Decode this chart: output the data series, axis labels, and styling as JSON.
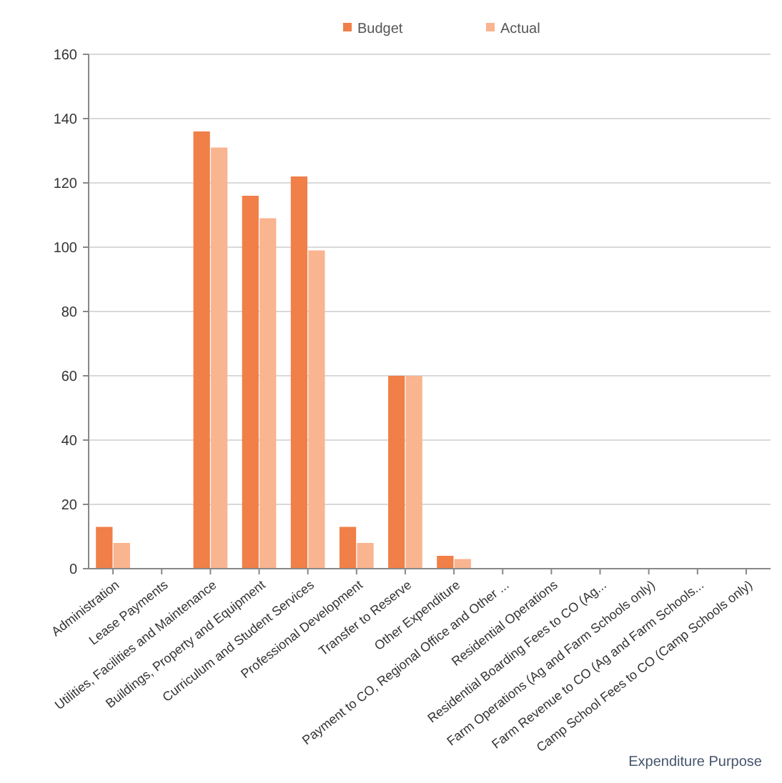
{
  "chart_data": {
    "type": "bar",
    "xlabel": "Expenditure Purpose",
    "categories": [
      "Administration",
      "Lease Payments",
      "Utilities, Facilities and Maintenance",
      "Buildings, Property and Equipment",
      "Curriculum and Student Services",
      "Professional Development",
      "Transfer to Reserve",
      "Other Expenditure",
      "Payment to CO, Regional Office and Other ...",
      "Residential Operations",
      "Residential Boarding Fees to CO (Ag...",
      "Farm Operations (Ag and Farm Schools only)",
      "Farm Revenue to CO (Ag and Farm Schools...",
      "Camp School Fees to CO (Camp Schools only)"
    ],
    "series": [
      {
        "name": "Budget",
        "color": "#f07f48",
        "values": [
          13,
          0,
          136,
          116,
          122,
          13,
          60,
          4,
          0,
          0,
          0,
          0,
          0,
          0
        ]
      },
      {
        "name": "Actual",
        "color": "#f9b490",
        "values": [
          8,
          0,
          131,
          109,
          99,
          8,
          60,
          3,
          0,
          0,
          0,
          0,
          0,
          0
        ]
      }
    ],
    "ylim": [
      0,
      160
    ],
    "yticks": [
      0,
      20,
      40,
      60,
      80,
      100,
      120,
      140,
      160
    ],
    "grid": "y",
    "legend": "top"
  }
}
